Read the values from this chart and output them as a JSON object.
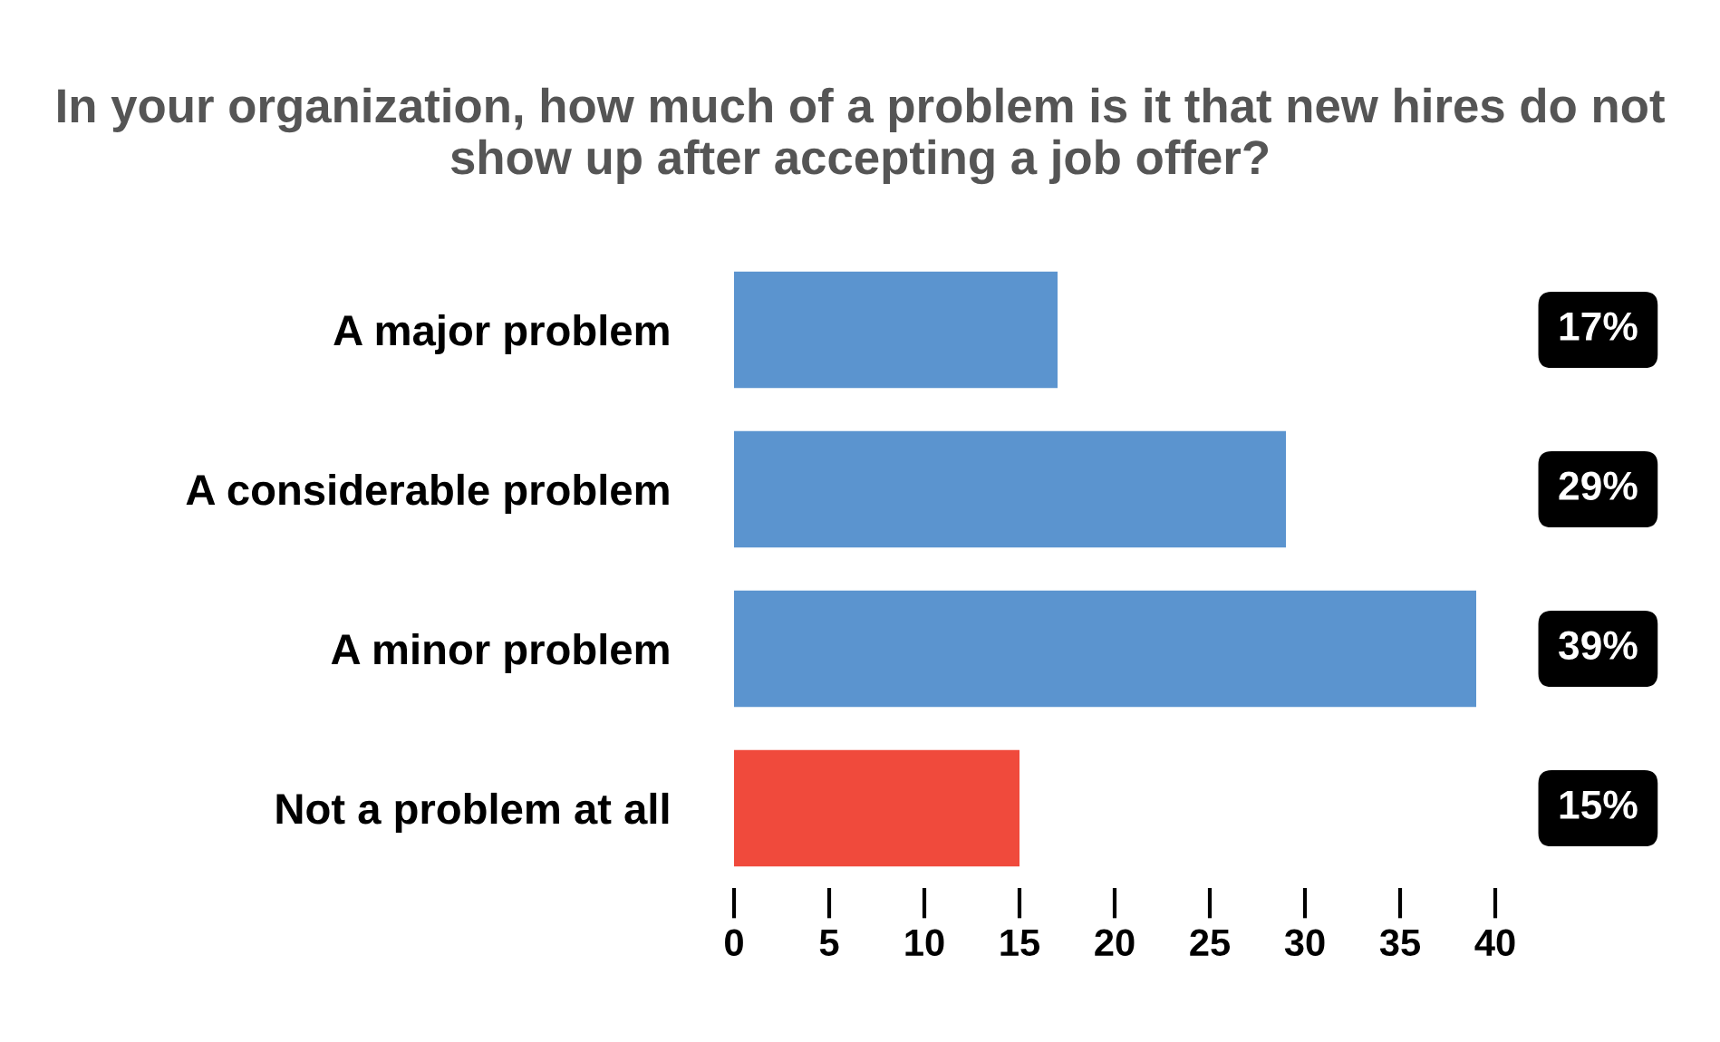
{
  "chart_data": {
    "type": "bar",
    "orientation": "horizontal",
    "title": "In your organization, how much of a problem is it that new hires do not show up after accepting a job offer?",
    "categories": [
      "A major problem",
      "A considerable problem",
      "A minor problem",
      "Not a problem at all"
    ],
    "values": [
      17,
      29,
      39,
      15
    ],
    "colors": [
      "#5b94cf",
      "#5b94cf",
      "#5b94cf",
      "#f04a3c"
    ],
    "value_labels": [
      "17%",
      "29%",
      "39%",
      "15%"
    ],
    "xlim": [
      0,
      40
    ],
    "xticks": [
      0,
      5,
      10,
      15,
      20,
      25,
      30,
      35,
      40
    ],
    "grid": false,
    "legend": false
  }
}
